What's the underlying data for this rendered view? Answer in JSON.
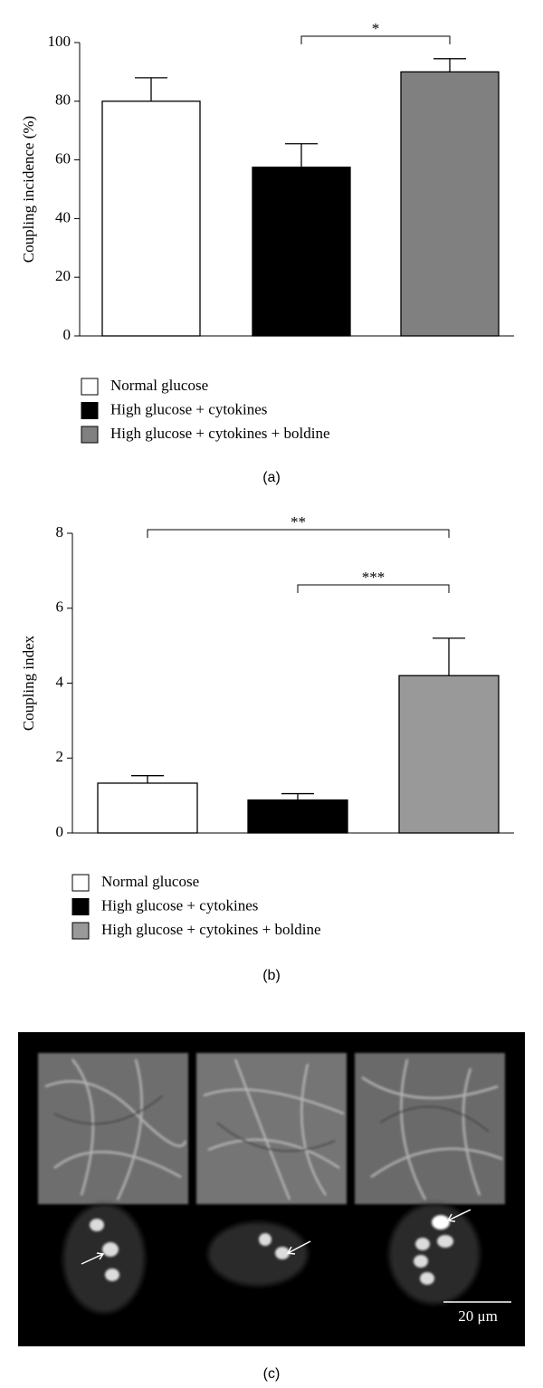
{
  "chart_data": [
    {
      "type": "bar",
      "y_label": "Coupling incidence (%)",
      "categories": [
        null
      ],
      "series": [
        {
          "name": "Normal glucose",
          "color": "#ffffff",
          "values": [
            80
          ],
          "errors": [
            8
          ]
        },
        {
          "name": "High glucose + cytokines",
          "color": "#000000",
          "values": [
            57.5
          ],
          "errors": [
            8
          ]
        },
        {
          "name": "High glucose + cytokines + boldine",
          "color": "#808080",
          "values": [
            90
          ],
          "errors": [
            4.5
          ]
        }
      ],
      "annotations": [
        {
          "text": "*",
          "between": [
            "High glucose + cytokines",
            "High glucose + cytokines + boldine"
          ]
        }
      ],
      "ylim": [
        0,
        100
      ],
      "yticks": [
        0,
        20,
        40,
        60,
        80,
        100
      ],
      "caption": "(a)"
    },
    {
      "type": "bar",
      "y_label": "Coupling index",
      "categories": [
        null
      ],
      "series": [
        {
          "name": "Normal glucose",
          "color": "#ffffff",
          "values": [
            1.33
          ],
          "errors": [
            0.2
          ]
        },
        {
          "name": "High glucose + cytokines",
          "color": "#000000",
          "values": [
            0.88
          ],
          "errors": [
            0.17
          ]
        },
        {
          "name": "High glucose + cytokines + boldine",
          "color": "#999999",
          "values": [
            4.2
          ],
          "errors": [
            1.0
          ]
        }
      ],
      "annotations": [
        {
          "text": "**",
          "between": [
            "Normal glucose",
            "High glucose + cytokines + boldine"
          ]
        },
        {
          "text": "***",
          "between": [
            "High glucose + cytokines",
            "High glucose + cytokines + boldine"
          ]
        }
      ],
      "ylim": [
        0,
        8
      ],
      "yticks": [
        0,
        2,
        4,
        6,
        8
      ],
      "caption": "(b)"
    }
  ],
  "micrograph": {
    "scale_bar": "20 μm",
    "caption": "(c)"
  }
}
